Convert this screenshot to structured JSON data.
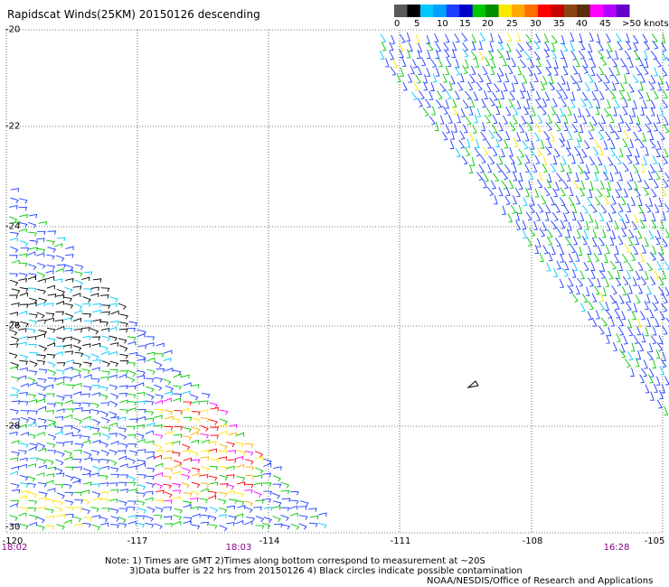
{
  "title": "Rapidscat Winds(25KM) 20150126 descending",
  "legend": {
    "colors": [
      "#595959",
      "#000000",
      "#00c8ff",
      "#00a0ff",
      "#1e3cff",
      "#0000c8",
      "#00c800",
      "#008c00",
      "#ffe600",
      "#ffaa00",
      "#ff6e00",
      "#ff0000",
      "#c80000",
      "#8b4513",
      "#5a2d0c",
      "#ff00ff",
      "#b400ff",
      "#6400c8"
    ],
    "labels": [
      "0",
      "5",
      "10",
      "15",
      "20",
      "25",
      "30",
      "35",
      "40",
      "45",
      ">50 knots"
    ]
  },
  "axes": {
    "x_labels": [
      "-120",
      "-117",
      "-114",
      "-111",
      "-108",
      "-105"
    ],
    "y_labels": [
      "-20",
      "-22",
      "-24",
      "-26",
      "-28",
      "-30"
    ],
    "time_labels": [
      "18:02",
      "18:03",
      "16:28"
    ]
  },
  "notes": [
    "Note: 1) Times are GMT 2)Times along bottom correspond to measurement at ~20S",
    "3)Data buffer is 22 hrs from 20150126 4) Black circles indicate possible contamination",
    "NOAA/NESDIS/Office of Research and Applications"
  ]
}
